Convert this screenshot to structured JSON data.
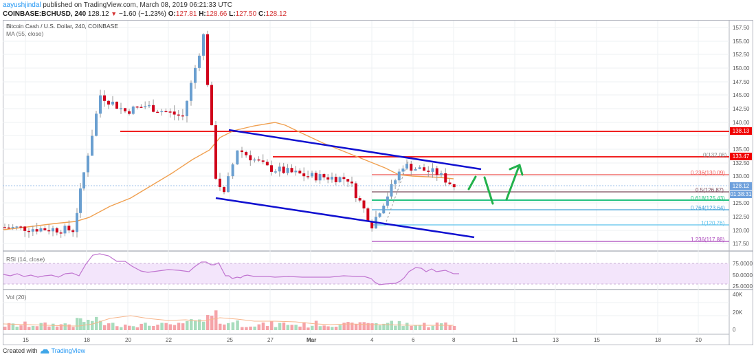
{
  "header": {
    "author": "aayushjindal",
    "published_text": "published on TradingView.com, March 08, 2019 06:21:33 UTC",
    "symbol": "COINBASE:BCHUSD, 240",
    "last_price": "128.12",
    "change": "−1.60 (−1.23%)",
    "open_label": "O:",
    "open": "127.81",
    "high_label": "H:",
    "high": "128.66",
    "low_label": "L:",
    "low": "127.50",
    "close_label": "C:",
    "close": "128.12"
  },
  "panes": {
    "main": {
      "title": "Bitcoin Cash / U.S. Dollar, 240, COINBASE",
      "indicator": "MA (55, close)"
    },
    "rsi": {
      "title": "RSI (14, close)",
      "ticks": [
        "75.0000",
        "50.0000",
        "25.0000"
      ]
    },
    "volume": {
      "title": "Vol (20)",
      "ticks": [
        "40K",
        "20K",
        "0"
      ]
    }
  },
  "price_axis": {
    "ticks": [
      "157.50",
      "155.00",
      "152.50",
      "150.00",
      "147.50",
      "145.00",
      "142.50",
      "140.00",
      "135.00",
      "132.50",
      "130.00",
      "125.00",
      "122.50",
      "120.00",
      "117.50"
    ],
    "tags": [
      {
        "label": "138.13",
        "color": "#f00000"
      },
      {
        "label": "133.47",
        "color": "#f00000"
      },
      {
        "label": "128.12",
        "color": "#6ea0dc"
      },
      {
        "label": "01:38:31",
        "color": "#6ea0dc"
      }
    ]
  },
  "time_axis": {
    "ticks": [
      "15",
      "18",
      "20",
      "22",
      "25",
      "27",
      "Mar",
      "4",
      "6",
      "8",
      "11",
      "13",
      "15",
      "18",
      "20"
    ]
  },
  "fib_labels": [
    {
      "label": "0(132.08)",
      "color": "#ef5350"
    },
    {
      "label": "0.236(130.09)",
      "color": "#ef5350"
    },
    {
      "label": "0.5(126.87)",
      "color": "#7b4b5a"
    },
    {
      "label": "0.618(125.43)",
      "color": "#26c281"
    },
    {
      "label": "0.764(123.64)",
      "color": "#3f9fd8"
    },
    {
      "label": "1(120.76)",
      "color": "#5bc0eb"
    },
    {
      "label": "1.236(117.88)",
      "color": "#ab47bc"
    }
  ],
  "footer": {
    "created_with": "Created with",
    "brand": "TradingView"
  },
  "colors": {
    "up": "#6a9fd0",
    "down": "#d0021b",
    "ma": "#f0a050",
    "channel": "#1010d0",
    "resistance": "#f02020",
    "arrow": "#22b14c",
    "rsi": "#c074d0"
  },
  "chart_data": {
    "type": "candlestick",
    "title": "Bitcoin Cash / U.S. Dollar, 240, COINBASE",
    "x_ticks": [
      "15",
      "18",
      "20",
      "22",
      "25",
      "27",
      "Mar",
      "4",
      "6",
      "8",
      "11",
      "13",
      "15",
      "18",
      "20"
    ],
    "ylim": [
      116,
      158
    ],
    "y_ticks": [
      117.5,
      120,
      122.5,
      125,
      127.5,
      130,
      132.5,
      135,
      137.5,
      140,
      142.5,
      145,
      147.5,
      150,
      152.5,
      155,
      157.5
    ],
    "approx_path": [
      {
        "date": "Feb 14",
        "price": 120.5
      },
      {
        "date": "Feb 17",
        "price": 120
      },
      {
        "date": "Feb 18",
        "price": 127
      },
      {
        "date": "Feb 19",
        "price": 145
      },
      {
        "date": "Feb 20",
        "price": 142
      },
      {
        "date": "Feb 21",
        "price": 143
      },
      {
        "date": "Feb 23",
        "price": 141
      },
      {
        "date": "Feb 24",
        "price": 156
      },
      {
        "date": "Feb 24 (drop)",
        "price": 130
      },
      {
        "date": "Feb 25",
        "price": 126.5
      },
      {
        "date": "Feb 26",
        "price": 135
      },
      {
        "date": "Feb 27",
        "price": 131.5
      },
      {
        "date": "Mar 1",
        "price": 130
      },
      {
        "date": "Mar 3",
        "price": 129.5
      },
      {
        "date": "Mar 4",
        "price": 121
      },
      {
        "date": "Mar 5",
        "price": 132
      },
      {
        "date": "Mar 7",
        "price": 130.5
      },
      {
        "date": "Mar 8",
        "price": 128.12
      }
    ],
    "horizontal_levels": [
      138.13,
      133.47
    ],
    "fibonacci": {
      "0": 132.08,
      "0.236": 130.09,
      "0.5": 126.87,
      "0.618": 125.43,
      "0.764": 123.64,
      "1": 120.76,
      "1.236": 117.88
    },
    "last_price": 128.12,
    "rsi": {
      "title": "RSI (14, close)",
      "ylim": [
        25,
        75
      ],
      "last": 45
    },
    "volume": {
      "title": "Vol (20)",
      "ylim": [
        0,
        40000
      ]
    }
  }
}
